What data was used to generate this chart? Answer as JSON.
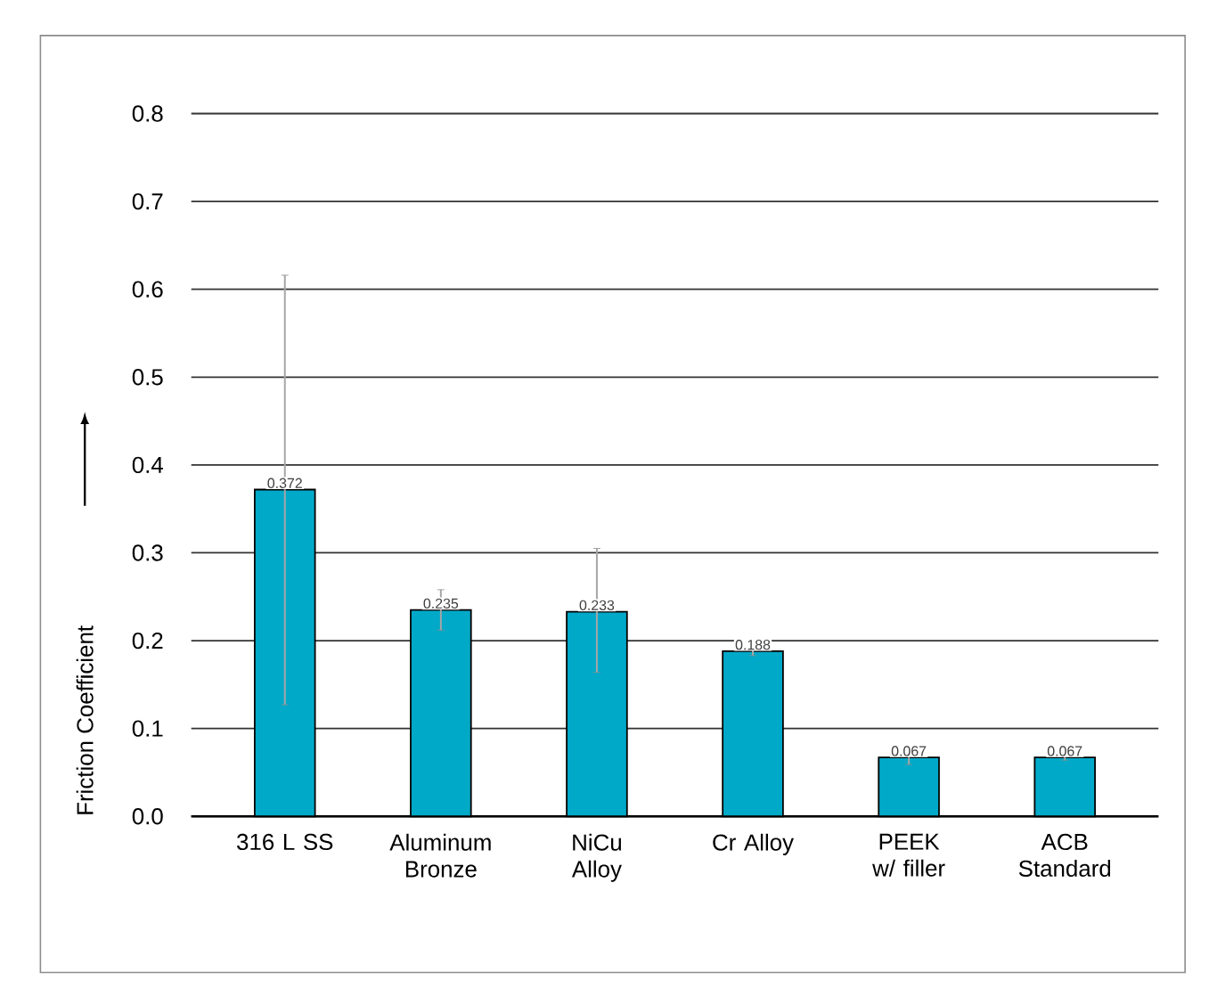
{
  "chart_data": {
    "type": "bar",
    "ylabel": "Friction Coefficient",
    "categories": [
      "316 L SS",
      "Aluminum Bronze",
      "NiCu Alloy",
      "Cr Alloy",
      "PEEK w/ filler",
      "ACB Standard"
    ],
    "values": [
      0.372,
      0.235,
      0.233,
      0.188,
      0.067,
      0.067
    ],
    "errors": [
      [
        0.127,
        0.616
      ],
      [
        0.212,
        0.258
      ],
      [
        0.164,
        0.305
      ],
      [
        0.183,
        0.193
      ],
      [
        0.059,
        0.075
      ],
      [
        0.064,
        0.07
      ]
    ],
    "color": "#00a9c8",
    "data_labels": true,
    "grid": "y",
    "ylim": [
      0,
      0.8
    ],
    "yticks": [
      {
        "value": 0,
        "label": "0.0"
      },
      {
        "value": 0.1,
        "label": "0.1"
      },
      {
        "value": 0.2,
        "label": "0.2"
      },
      {
        "value": 0.3,
        "label": "0.3"
      },
      {
        "value": 0.4,
        "label": "0.4"
      },
      {
        "value": 0.5,
        "label": "0.5"
      },
      {
        "value": 0.6,
        "label": "0.6"
      },
      {
        "value": 0.7,
        "label": "0.7"
      },
      {
        "value": 0.8,
        "label": "0.8"
      }
    ]
  }
}
